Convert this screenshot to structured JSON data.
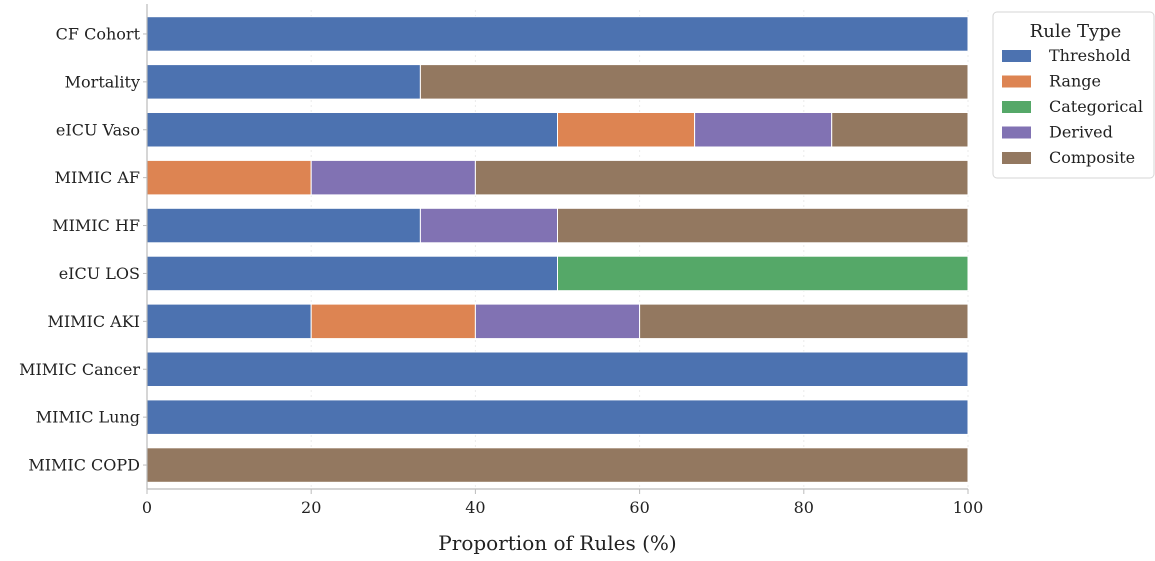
{
  "chart_data": {
    "type": "bar",
    "orientation": "horizontal",
    "stacked": true,
    "title": "",
    "xlabel": "Proportion of Rules (%)",
    "ylabel": "",
    "xlim": [
      0,
      100
    ],
    "xticks": [
      0,
      20,
      40,
      60,
      80,
      100
    ],
    "grid": true,
    "legend_placement": "outside-top-right",
    "legend_title": "Rule Type",
    "categories": [
      "CF Cohort",
      "Mortality",
      "eICU Vaso",
      "MIMIC AF",
      "MIMIC HF",
      "eICU LOS",
      "MIMIC AKI",
      "MIMIC Cancer",
      "MIMIC Lung",
      "MIMIC COPD"
    ],
    "series": [
      {
        "name": "Threshold",
        "color": "#4c72b0",
        "values": [
          100,
          33.3,
          50,
          0,
          33.3,
          50,
          20,
          100,
          100,
          0
        ]
      },
      {
        "name": "Range",
        "color": "#dd8452",
        "values": [
          0,
          0,
          16.7,
          20,
          0,
          0,
          20,
          0,
          0,
          0
        ]
      },
      {
        "name": "Categorical",
        "color": "#55a868",
        "values": [
          0,
          0,
          0,
          0,
          0,
          50,
          0,
          0,
          0,
          0
        ]
      },
      {
        "name": "Derived",
        "color": "#8172b3",
        "values": [
          0,
          0,
          16.7,
          20,
          16.7,
          0,
          20,
          0,
          0,
          0
        ]
      },
      {
        "name": "Composite",
        "color": "#937860",
        "values": [
          0,
          66.7,
          16.6,
          60,
          50,
          0,
          40,
          0,
          0,
          100
        ]
      }
    ]
  }
}
